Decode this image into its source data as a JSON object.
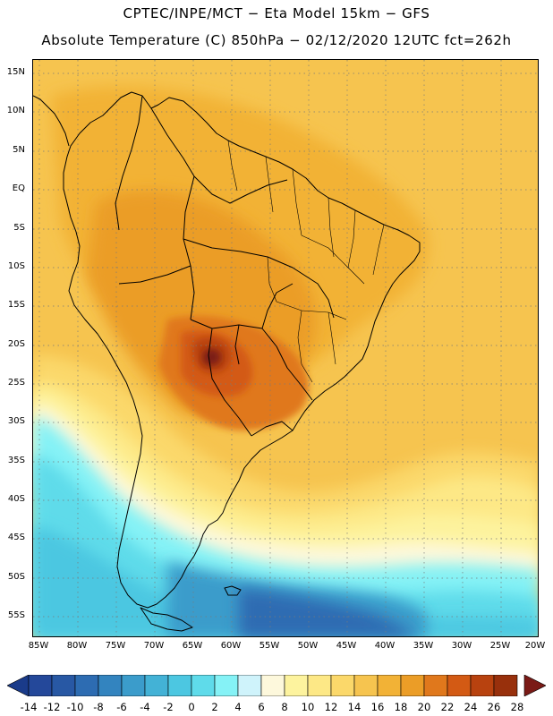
{
  "header": {
    "title_line1": "CPTEC/INPE/MCT −  Eta Model 15km − GFS",
    "title_line2": "Absolute Temperature (C) 850hPa − 02/12/2020 12UTC fct=262h"
  },
  "map": {
    "lat_labels": [
      "15N",
      "10N",
      "5N",
      "EQ",
      "5S",
      "10S",
      "15S",
      "20S",
      "25S",
      "30S",
      "35S",
      "40S",
      "45S",
      "50S",
      "55S"
    ],
    "lon_labels": [
      "85W",
      "80W",
      "75W",
      "70W",
      "65W",
      "60W",
      "55W",
      "50W",
      "45W",
      "40W",
      "35W",
      "30W",
      "25W",
      "20W"
    ]
  },
  "legend": {
    "labels": [
      "-14",
      "-12",
      "-10",
      "-8",
      "-6",
      "-4",
      "-2",
      "0",
      "2",
      "4",
      "6",
      "8",
      "10",
      "12",
      "14",
      "16",
      "18",
      "20",
      "22",
      "24",
      "26",
      "28"
    ],
    "colors": {
      "under": "#1a3b8a",
      "bins": [
        "#24489a",
        "#2858a4",
        "#2d6cb2",
        "#3384bf",
        "#3b9ccb",
        "#43b2d6",
        "#4cc7e1",
        "#5fdbea",
        "#85f2f6",
        "#cff3fb",
        "#fdf8dc",
        "#fdf39e",
        "#fde886",
        "#fbd86a",
        "#f6c44f",
        "#f2b236",
        "#eb9d27",
        "#e0781c",
        "#d35a14",
        "#b8420f",
        "#98300c"
      ],
      "over": "#7a1a16"
    }
  }
}
